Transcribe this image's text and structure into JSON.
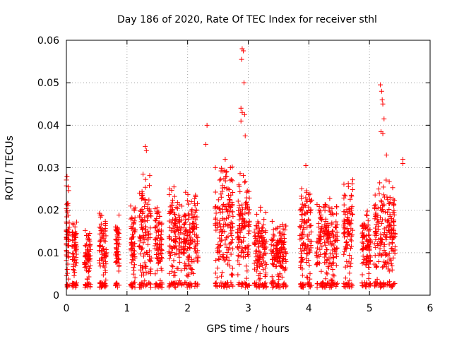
{
  "chart_data": {
    "type": "scatter",
    "title": "Day 186 of 2020, Rate Of TEC Index for receiver sthl",
    "xlabel": "GPS time / hours",
    "ylabel": "ROTI / TECUs",
    "xlim": [
      0,
      6
    ],
    "ylim": [
      0,
      0.06
    ],
    "xticks": [
      0,
      1,
      2,
      3,
      4,
      5,
      6
    ],
    "xtick_labels": [
      "0",
      "1",
      "2",
      "3",
      "4",
      "5",
      "6"
    ],
    "yticks": [
      0,
      0.01,
      0.02,
      0.03,
      0.04,
      0.05,
      0.06
    ],
    "ytick_labels": [
      "0",
      "0.01",
      "0.02",
      "0.03",
      "0.04",
      "0.05",
      "0.06"
    ],
    "grid": true,
    "marker": "plus",
    "color": "#ff0000",
    "series": [
      {
        "name": "ROTI",
        "clusters": [
          {
            "x": 0.02,
            "width": 0.06,
            "ymin": 0.002,
            "ymax": 0.028,
            "peaks": [
              [
                0.01,
                0.028
              ],
              [
                0.03,
                0.0255
              ]
            ]
          },
          {
            "x": 0.13,
            "width": 0.08,
            "ymin": 0.004,
            "ymax": 0.019,
            "peaks": []
          },
          {
            "x": 0.35,
            "width": 0.1,
            "ymin": 0.003,
            "ymax": 0.016,
            "peaks": []
          },
          {
            "x": 0.6,
            "width": 0.12,
            "ymin": 0.002,
            "ymax": 0.02,
            "peaks": []
          },
          {
            "x": 0.84,
            "width": 0.06,
            "ymin": 0.004,
            "ymax": 0.02,
            "peaks": []
          },
          {
            "x": 1.1,
            "width": 0.08,
            "ymin": 0.003,
            "ymax": 0.023,
            "peaks": []
          },
          {
            "x": 1.3,
            "width": 0.2,
            "ymin": 0.002,
            "ymax": 0.03,
            "peaks": [
              [
                1.3,
                0.035
              ],
              [
                1.32,
                0.034
              ]
            ]
          },
          {
            "x": 1.52,
            "width": 0.12,
            "ymin": 0.002,
            "ymax": 0.024,
            "peaks": []
          },
          {
            "x": 1.8,
            "width": 0.22,
            "ymin": 0.002,
            "ymax": 0.027,
            "peaks": []
          },
          {
            "x": 2.05,
            "width": 0.25,
            "ymin": 0.002,
            "ymax": 0.025,
            "peaks": [
              [
                2.32,
                0.04
              ],
              [
                2.3,
                0.0355
              ]
            ]
          },
          {
            "x": 2.6,
            "width": 0.3,
            "ymin": 0.002,
            "ymax": 0.033,
            "peaks": [
              [
                2.62,
                0.032
              ]
            ]
          },
          {
            "x": 2.92,
            "width": 0.2,
            "ymin": 0.002,
            "ymax": 0.03,
            "peaks": [
              [
                2.9,
                0.058
              ],
              [
                2.92,
                0.0575
              ],
              [
                2.89,
                0.0555
              ],
              [
                2.93,
                0.05
              ],
              [
                2.88,
                0.044
              ],
              [
                2.9,
                0.043
              ],
              [
                2.94,
                0.0425
              ],
              [
                2.88,
                0.041
              ],
              [
                2.95,
                0.0375
              ]
            ]
          },
          {
            "x": 3.2,
            "width": 0.2,
            "ymin": 0.002,
            "ymax": 0.022,
            "peaks": []
          },
          {
            "x": 3.5,
            "width": 0.25,
            "ymin": 0.002,
            "ymax": 0.018,
            "peaks": []
          },
          {
            "x": 3.95,
            "width": 0.2,
            "ymin": 0.002,
            "ymax": 0.03,
            "peaks": [
              [
                3.95,
                0.0305
              ]
            ]
          },
          {
            "x": 4.3,
            "width": 0.35,
            "ymin": 0.001,
            "ymax": 0.024,
            "peaks": []
          },
          {
            "x": 4.65,
            "width": 0.15,
            "ymin": 0.002,
            "ymax": 0.028,
            "peaks": []
          },
          {
            "x": 4.95,
            "width": 0.15,
            "ymin": 0.002,
            "ymax": 0.02,
            "peaks": []
          },
          {
            "x": 5.25,
            "width": 0.35,
            "ymin": 0.002,
            "ymax": 0.028,
            "peaks": [
              [
                5.18,
                0.0495
              ],
              [
                5.2,
                0.048
              ],
              [
                5.21,
                0.046
              ],
              [
                5.22,
                0.045
              ],
              [
                5.24,
                0.0415
              ],
              [
                5.19,
                0.0385
              ],
              [
                5.22,
                0.038
              ],
              [
                5.28,
                0.033
              ],
              [
                5.55,
                0.032
              ],
              [
                5.55,
                0.031
              ]
            ]
          }
        ]
      }
    ]
  }
}
